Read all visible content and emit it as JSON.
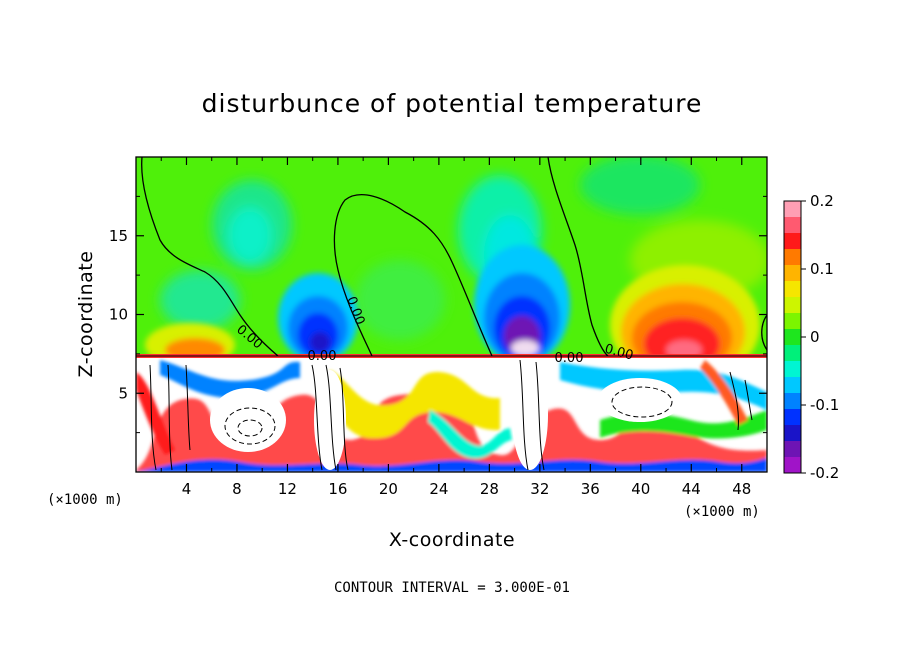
{
  "chart_data": {
    "type": "heatmap",
    "title": "disturbunce of potential temperature",
    "xlabel": "X-coordinate",
    "ylabel": "Z-coordinate",
    "x_unit": "(×1000 m)",
    "z_unit": "(×1000 m)",
    "x_range": [
      0,
      50
    ],
    "z_range": [
      0,
      20
    ],
    "x_ticks": [
      4,
      8,
      12,
      16,
      20,
      24,
      28,
      32,
      36,
      40,
      44,
      48
    ],
    "z_ticks": [
      5,
      10,
      15
    ],
    "colorbar": {
      "range": [
        -0.2,
        0.2
      ],
      "ticks": [
        "0.2",
        "0.1",
        "0",
        "-0.1",
        "-0.2"
      ],
      "colors": [
        "#ff9fb4",
        "#ff5a70",
        "#ff1a1a",
        "#ff7a00",
        "#ffb400",
        "#f5e600",
        "#cdf500",
        "#7cf500",
        "#1ee61e",
        "#00f07a",
        "#00f5d2",
        "#00c8ff",
        "#0082ff",
        "#0032ff",
        "#1a14c8",
        "#6e14b4",
        "#a014c8"
      ]
    },
    "contour_interval": "CONTOUR INTERVAL = 3.000E-01",
    "contour_labels": [
      "0.00",
      "0.00",
      "0.00",
      "0.00",
      "0.00"
    ],
    "features": [
      {
        "kind": "warm",
        "x": 42.5,
        "z": 10.5,
        "value": 0.16
      },
      {
        "kind": "warm",
        "x": 5.5,
        "z": 8.5,
        "value": 0.08
      },
      {
        "kind": "cool",
        "x": 30.5,
        "z": 9.5,
        "value": -0.2
      },
      {
        "kind": "cool",
        "x": 14.5,
        "z": 9.5,
        "value": -0.17
      },
      {
        "kind": "cool",
        "x": 8.5,
        "z": 15.0,
        "value": -0.06
      },
      {
        "kind": "cool",
        "x": 29.0,
        "z": 15.5,
        "value": -0.08
      }
    ]
  }
}
